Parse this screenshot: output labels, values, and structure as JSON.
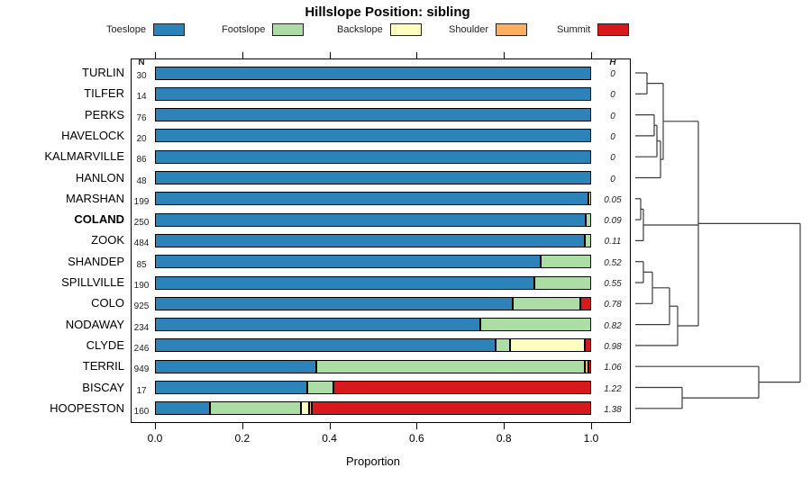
{
  "title": "Hillslope Position: sibling",
  "headers": {
    "n": "N",
    "h": "H"
  },
  "xaxis": {
    "label": "Proportion",
    "ticks": [
      "0.0",
      "0.2",
      "0.4",
      "0.6",
      "0.8",
      "1.0"
    ]
  },
  "legend": [
    {
      "label": "Toeslope",
      "color": "#2b83ba"
    },
    {
      "label": "Footslope",
      "color": "#abdda4"
    },
    {
      "label": "Backslope",
      "color": "#ffffbf"
    },
    {
      "label": "Shoulder",
      "color": "#fdae61"
    },
    {
      "label": "Summit",
      "color": "#d7191c"
    }
  ],
  "chart_data": {
    "type": "bar",
    "stacked": true,
    "orientation": "horizontal",
    "title": "Hillslope Position: sibling",
    "xlabel": "Proportion",
    "xlim": [
      0,
      1
    ],
    "series_legend": [
      "Toeslope",
      "Footslope",
      "Backslope",
      "Shoulder",
      "Summit"
    ],
    "colors": [
      "#2b83ba",
      "#abdda4",
      "#ffffbf",
      "#fdae61",
      "#d7191c"
    ],
    "rows": [
      {
        "name": "TURLIN",
        "n": 30,
        "h": "0",
        "bold": false,
        "proportions": [
          1,
          0,
          0,
          0,
          0
        ]
      },
      {
        "name": "TILFER",
        "n": 14,
        "h": "0",
        "bold": false,
        "proportions": [
          1,
          0,
          0,
          0,
          0
        ]
      },
      {
        "name": "PERKS",
        "n": 76,
        "h": "0",
        "bold": false,
        "proportions": [
          1,
          0,
          0,
          0,
          0
        ]
      },
      {
        "name": "HAVELOCK",
        "n": 20,
        "h": "0",
        "bold": false,
        "proportions": [
          1,
          0,
          0,
          0,
          0
        ]
      },
      {
        "name": "KALMARVILLE",
        "n": 86,
        "h": "0",
        "bold": false,
        "proportions": [
          1,
          0,
          0,
          0,
          0
        ]
      },
      {
        "name": "HANLON",
        "n": 48,
        "h": "0",
        "bold": false,
        "proportions": [
          1,
          0,
          0,
          0,
          0
        ]
      },
      {
        "name": "MARSHAN",
        "n": 199,
        "h": "0.05",
        "bold": false,
        "proportions": [
          0.993,
          0,
          0.007,
          0,
          0
        ]
      },
      {
        "name": "COLAND",
        "n": 250,
        "h": "0.09",
        "bold": true,
        "proportions": [
          0.988,
          0.012,
          0,
          0,
          0
        ]
      },
      {
        "name": "ZOOK",
        "n": 484,
        "h": "0.11",
        "bold": false,
        "proportions": [
          0.985,
          0.015,
          0,
          0,
          0
        ]
      },
      {
        "name": "SHANDEP",
        "n": 85,
        "h": "0.52",
        "bold": false,
        "proportions": [
          0.885,
          0.115,
          0,
          0,
          0
        ]
      },
      {
        "name": "SPILLVILLE",
        "n": 190,
        "h": "0.55",
        "bold": false,
        "proportions": [
          0.87,
          0.13,
          0,
          0,
          0
        ]
      },
      {
        "name": "COLO",
        "n": 925,
        "h": "0.78",
        "bold": false,
        "proportions": [
          0.82,
          0.155,
          0,
          0,
          0.025
        ]
      },
      {
        "name": "NODAWAY",
        "n": 234,
        "h": "0.82",
        "bold": false,
        "proportions": [
          0.745,
          0.255,
          0,
          0,
          0
        ]
      },
      {
        "name": "CLYDE",
        "n": 246,
        "h": "0.98",
        "bold": false,
        "proportions": [
          0.78,
          0.035,
          0.17,
          0,
          0.015
        ]
      },
      {
        "name": "TERRIL",
        "n": 949,
        "h": "1.06",
        "bold": false,
        "proportions": [
          0.37,
          0.615,
          0,
          0.008,
          0.007
        ]
      },
      {
        "name": "BISCAY",
        "n": 17,
        "h": "1.22",
        "bold": false,
        "proportions": [
          0.35,
          0.06,
          0,
          0,
          0.59
        ]
      },
      {
        "name": "HOOPESTON",
        "n": 160,
        "h": "1.38",
        "bold": false,
        "proportions": [
          0.125,
          0.21,
          0.018,
          0.007,
          0.64
        ]
      }
    ],
    "dendrogram_segments": [
      [
        5,
        21,
        18,
        21
      ],
      [
        5,
        44.3,
        18,
        44.3
      ],
      [
        18,
        21,
        18,
        44.3
      ],
      [
        18,
        32.6,
        36,
        32.6
      ],
      [
        5,
        67.6,
        26,
        67.6
      ],
      [
        5,
        90.9,
        26,
        90.9
      ],
      [
        26,
        67.6,
        26,
        90.9
      ],
      [
        26,
        79.2,
        29,
        79.2
      ],
      [
        5,
        114.2,
        29,
        114.2
      ],
      [
        29,
        79.2,
        29,
        114.2
      ],
      [
        29,
        96.7,
        33,
        96.7
      ],
      [
        5,
        137.5,
        33,
        137.5
      ],
      [
        33,
        96.7,
        33,
        137.5
      ],
      [
        33,
        117.1,
        36,
        117.1
      ],
      [
        36,
        32.6,
        36,
        117.1
      ],
      [
        36,
        74.8,
        75,
        74.8
      ],
      [
        5,
        160.8,
        11,
        160.8
      ],
      [
        5,
        184.1,
        11,
        184.1
      ],
      [
        11,
        160.8,
        11,
        184.1
      ],
      [
        11,
        172.4,
        14,
        172.4
      ],
      [
        5,
        207.4,
        14,
        207.4
      ],
      [
        14,
        172.4,
        14,
        207.4
      ],
      [
        14,
        190,
        75,
        190
      ],
      [
        5,
        230.7,
        14,
        230.7
      ],
      [
        5,
        254,
        14,
        254
      ],
      [
        14,
        230.7,
        14,
        254
      ],
      [
        14,
        242.3,
        24,
        242.3
      ],
      [
        5,
        277.3,
        24,
        277.3
      ],
      [
        24,
        242.3,
        24,
        277.3
      ],
      [
        24,
        259.8,
        43,
        259.8
      ],
      [
        5,
        300.6,
        43,
        300.6
      ],
      [
        43,
        259.8,
        43,
        300.6
      ],
      [
        43,
        280.2,
        52,
        280.2
      ],
      [
        5,
        323.9,
        52,
        323.9
      ],
      [
        52,
        280.2,
        52,
        323.9
      ],
      [
        52,
        302,
        75,
        302
      ],
      [
        75,
        74.8,
        75,
        302
      ],
      [
        75,
        188.4,
        188,
        188.4
      ],
      [
        5,
        370.5,
        57,
        370.5
      ],
      [
        5,
        393.8,
        57,
        393.8
      ],
      [
        57,
        370.5,
        57,
        393.8
      ],
      [
        57,
        382.1,
        142,
        382.1
      ],
      [
        5,
        347.2,
        142,
        347.2
      ],
      [
        142,
        347.2,
        142,
        382.1
      ],
      [
        142,
        364.6,
        188,
        364.6
      ],
      [
        188,
        188.4,
        188,
        364.6
      ]
    ]
  }
}
